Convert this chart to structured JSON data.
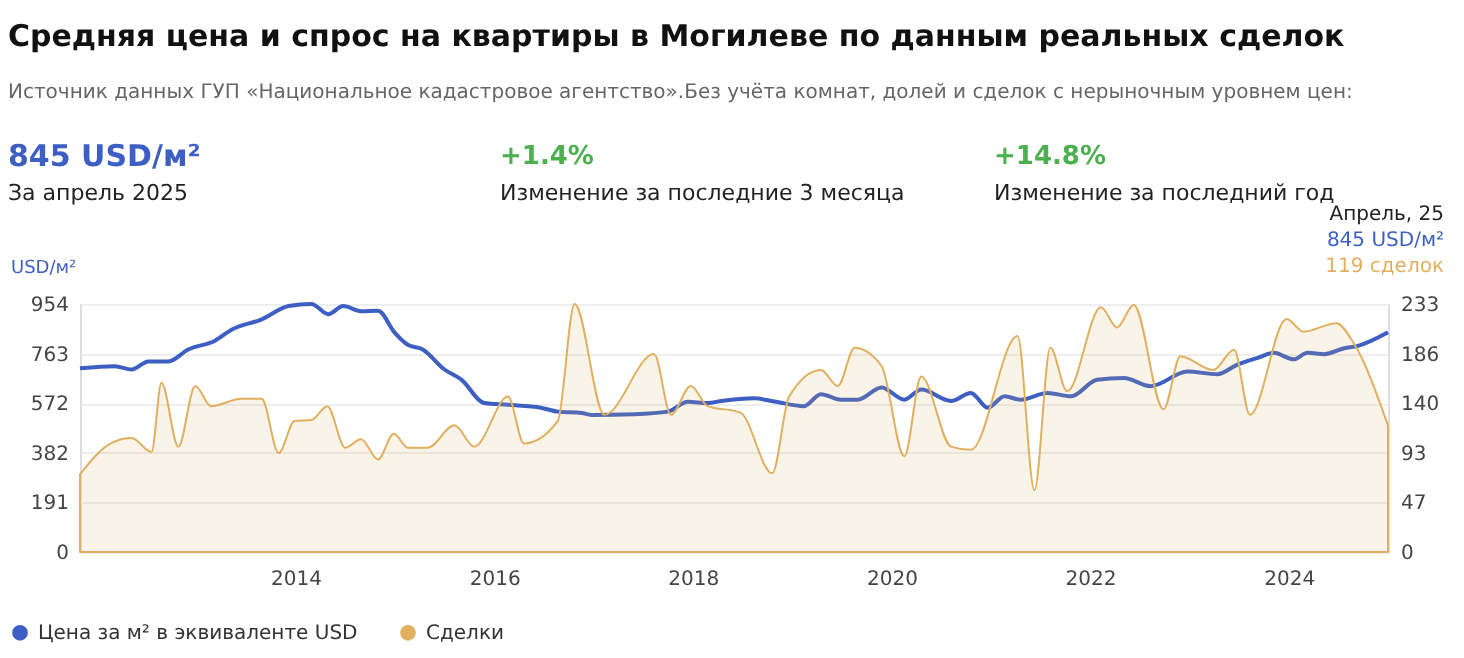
{
  "chart_data": {
    "type": "line",
    "title": "Средняя цена и спрос на квартиры в Могилеве по данным реальных сделок",
    "subtitle": "Источник данных ГУП «Национальное кадастровое агентство».Без учёта комнат, долей и сделок с нерыночным уровнем цен:",
    "ylabel": "USD/м²",
    "annotations": [
      "845 USD/м²",
      "За апрель 2025",
      "+1.4%",
      "Изменение за последние 3 месяца",
      "+14.8%",
      "Изменение за последний год",
      "Апрель, 25",
      "845 USD/м²",
      "119 сделок"
    ],
    "series": [
      {
        "name": "Цена за м² в эквиваленте USD",
        "color": "#3d5fc4",
        "x": [
          2011.83,
          2012.18,
          2012.35,
          2012.52,
          2012.72,
          2012.92,
          2013.19,
          2013.36,
          2013.66,
          2013.93,
          2014.16,
          2014.33,
          2014.48,
          2014.66,
          2014.83,
          2015.0,
          2015.13,
          2015.28,
          2015.5,
          2015.67,
          2015.9,
          2016.14,
          2016.47,
          2016.64,
          2016.88,
          2016.98,
          2017.41,
          2017.75,
          2017.95,
          2018.15,
          2018.29,
          2018.62,
          2018.82,
          2019.12,
          2019.29,
          2019.49,
          2019.66,
          2019.9,
          2020.13,
          2020.3,
          2020.6,
          2020.8,
          2020.97,
          2021.14,
          2021.3,
          2021.57,
          2021.81,
          2022.07,
          2022.34,
          2022.61,
          2022.98,
          2023.28,
          2023.48,
          2023.68,
          2023.85,
          2024.05,
          2024.19,
          2024.36,
          2024.56,
          2024.69,
          2025.0
        ],
        "values": [
          707,
          715,
          702,
          733,
          733,
          779,
          813,
          856,
          895,
          946,
          954,
          915,
          946,
          926,
          928,
          843,
          797,
          779,
          702,
          663,
          573,
          566,
          555,
          540,
          535,
          527,
          530,
          540,
          578,
          573,
          581,
          591,
          579,
          561,
          607,
          586,
          586,
          633,
          586,
          625,
          581,
          612,
          555,
          599,
          586,
          612,
          599,
          663,
          669,
          638,
          694,
          684,
          720,
          746,
          766,
          741,
          766,
          761,
          784,
          792,
          845
        ]
      },
      {
        "name": "Сделки",
        "type": "area",
        "axis": "y2",
        "color": "#e0b060",
        "x": [
          2011.83,
          2012.14,
          2012.35,
          2012.55,
          2012.65,
          2012.82,
          2012.99,
          2013.15,
          2013.45,
          2013.66,
          2013.83,
          2013.99,
          2014.16,
          2014.32,
          2014.5,
          2014.66,
          2014.83,
          2014.99,
          2015.13,
          2015.33,
          2015.6,
          2015.8,
          2016.14,
          2016.3,
          2016.64,
          2016.81,
          2017.11,
          2017.61,
          2017.78,
          2017.98,
          2018.15,
          2018.48,
          2018.8,
          2018.97,
          2019.29,
          2019.46,
          2019.63,
          2019.9,
          2020.13,
          2020.3,
          2020.6,
          2020.8,
          2021.27,
          2021.44,
          2021.6,
          2021.77,
          2022.11,
          2022.27,
          2022.44,
          2022.74,
          2022.91,
          2023.24,
          2023.45,
          2023.61,
          2023.98,
          2024.15,
          2024.48,
          2024.65,
          2025.0
        ],
        "values": [
          73,
          102,
          107,
          94,
          159,
          99,
          156,
          137,
          144,
          144,
          93,
          123,
          124,
          137,
          98,
          106,
          87,
          111,
          98,
          98,
          119,
          99,
          146,
          102,
          123,
          233,
          129,
          186,
          129,
          156,
          137,
          131,
          74,
          146,
          171,
          156,
          192,
          175,
          90,
          165,
          99,
          96,
          203,
          58,
          192,
          151,
          230,
          211,
          232,
          134,
          184,
          171,
          190,
          129,
          219,
          207,
          215,
          197,
          119
        ]
      }
    ],
    "xlim": [
      2011.83,
      2025.0
    ],
    "xticks": [
      2014,
      2016,
      2018,
      2020,
      2022,
      2024
    ],
    "ylim": [
      0,
      954
    ],
    "yticks": [
      0,
      191,
      382,
      572,
      763,
      954
    ],
    "y2lim": [
      0,
      233
    ],
    "y2ticks": [
      0,
      47,
      93,
      140,
      186,
      233
    ],
    "grid": "y",
    "legend": "bottom left",
    "line_style": "solid",
    "marker": "none"
  }
}
